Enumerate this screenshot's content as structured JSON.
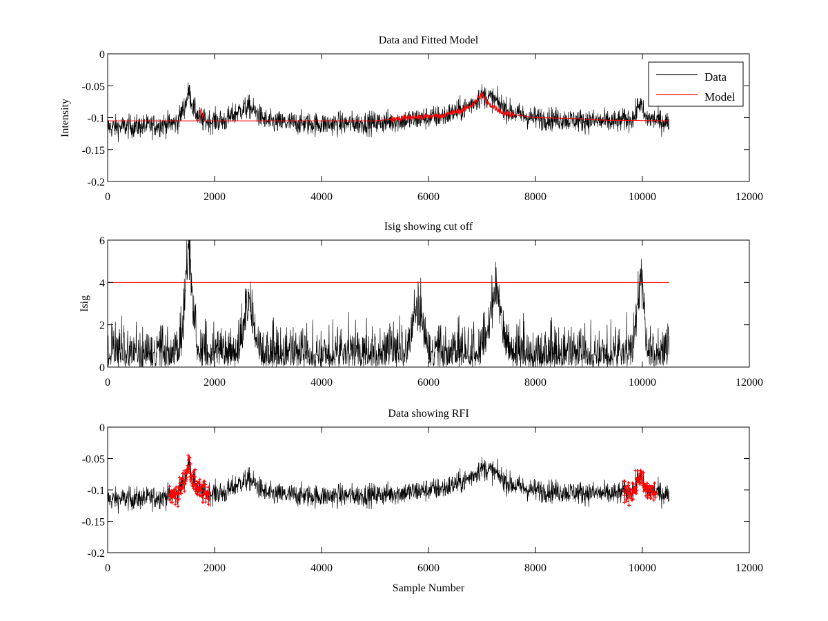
{
  "chart_data": [
    {
      "type": "line",
      "title": "Data and Fitted Model",
      "xlabel": "",
      "ylabel": "Intensity",
      "xlim": [
        0,
        12000
      ],
      "ylim": [
        -0.2,
        0
      ],
      "xticks": [
        "0",
        "2000",
        "4000",
        "6000",
        "8000",
        "10000",
        "12000"
      ],
      "yticks": [
        "-0.2",
        "-0.15",
        "-0.1",
        "-0.05",
        "0"
      ],
      "legend": {
        "position": "top-right",
        "entries": [
          {
            "label": "Data",
            "color": "#000000"
          },
          {
            "label": "Model",
            "color": "#ff0000"
          }
        ]
      },
      "series": [
        {
          "name": "Data",
          "color": "#000000",
          "noise_amplitude": 0.018,
          "baseline": [
            [
              0,
              -0.115
            ],
            [
              800,
              -0.113
            ],
            [
              1300,
              -0.108
            ],
            [
              1450,
              -0.08
            ],
            [
              1520,
              -0.058
            ],
            [
              1600,
              -0.085
            ],
            [
              1750,
              -0.105
            ],
            [
              2200,
              -0.105
            ],
            [
              2450,
              -0.09
            ],
            [
              2650,
              -0.083
            ],
            [
              2850,
              -0.098
            ],
            [
              3000,
              -0.107
            ],
            [
              4000,
              -0.11
            ],
            [
              5000,
              -0.108
            ],
            [
              5700,
              -0.103
            ],
            [
              6300,
              -0.097
            ],
            [
              6700,
              -0.085
            ],
            [
              7000,
              -0.065
            ],
            [
              7200,
              -0.07
            ],
            [
              7500,
              -0.09
            ],
            [
              7900,
              -0.1
            ],
            [
              8500,
              -0.103
            ],
            [
              9500,
              -0.107
            ],
            [
              9850,
              -0.1
            ],
            [
              9950,
              -0.075
            ],
            [
              10050,
              -0.1
            ],
            [
              10500,
              -0.108
            ]
          ]
        },
        {
          "name": "Model",
          "color": "#ff0000",
          "noise_amplitude": 0.004,
          "baseline": [
            [
              0,
              -0.105
            ],
            [
              1700,
              -0.105
            ],
            [
              1750,
              -0.085
            ],
            [
              1790,
              -0.105
            ],
            [
              5000,
              -0.105
            ],
            [
              5600,
              -0.1
            ],
            [
              6200,
              -0.097
            ],
            [
              6600,
              -0.09
            ],
            [
              6850,
              -0.078
            ],
            [
              7000,
              -0.063
            ],
            [
              7100,
              -0.077
            ],
            [
              7400,
              -0.093
            ],
            [
              8000,
              -0.1
            ],
            [
              8600,
              -0.101
            ],
            [
              9300,
              -0.104
            ],
            [
              10500,
              -0.105
            ]
          ]
        }
      ]
    },
    {
      "type": "line",
      "title": "Isig showing cut off",
      "xlabel": "",
      "ylabel": "Isig",
      "xlim": [
        0,
        12000
      ],
      "ylim": [
        0,
        6
      ],
      "xticks": [
        "0",
        "2000",
        "4000",
        "6000",
        "8000",
        "10000",
        "12000"
      ],
      "yticks": [
        "0",
        "2",
        "4",
        "6"
      ],
      "cutoff": 4,
      "series": [
        {
          "name": "Isig",
          "color": "#000000",
          "bursts": [
            {
              "center": 1520,
              "width": 70,
              "peak": 5.9
            },
            {
              "center": 2650,
              "width": 90,
              "peak": 3.0
            },
            {
              "center": 5800,
              "width": 90,
              "peak": 3.0
            },
            {
              "center": 7250,
              "width": 110,
              "peak": 3.5
            },
            {
              "center": 9960,
              "width": 60,
              "peak": 4.6
            }
          ]
        },
        {
          "name": "Cut off",
          "color": "#ff0000",
          "x": [
            0,
            10500
          ],
          "y": [
            4,
            4
          ]
        }
      ]
    },
    {
      "type": "line",
      "title": "Data showing RFI",
      "xlabel": "Sample Number",
      "ylabel": "",
      "xlim": [
        0,
        12000
      ],
      "ylim": [
        -0.2,
        0
      ],
      "xticks": [
        "0",
        "2000",
        "4000",
        "6000",
        "8000",
        "10000",
        "12000"
      ],
      "yticks": [
        "-0.2",
        "-0.15",
        "-0.1",
        "-0.05",
        "0"
      ],
      "series": [
        {
          "name": "Data",
          "color": "#000000"
        },
        {
          "name": "RFI",
          "color": "#ff0000",
          "marker": "+",
          "ranges": [
            [
              1150,
              1900
            ],
            [
              9650,
              10250
            ]
          ]
        }
      ]
    }
  ]
}
